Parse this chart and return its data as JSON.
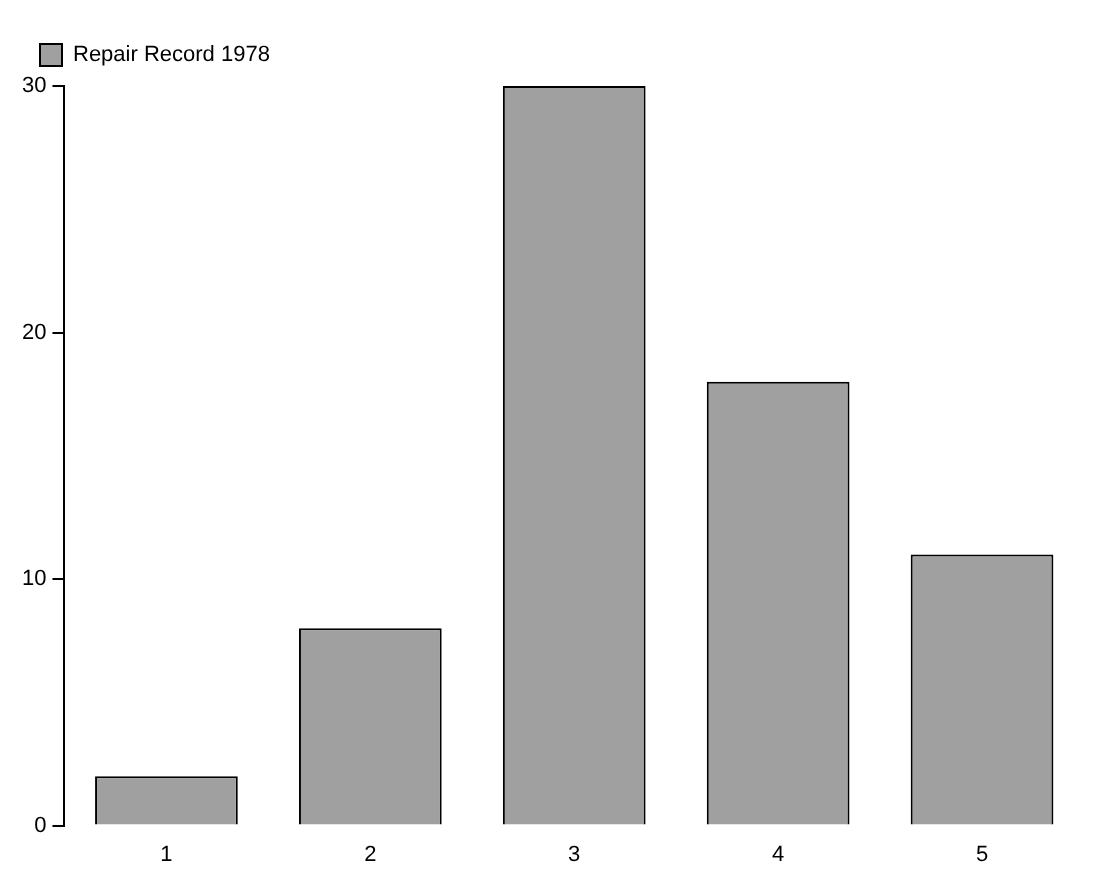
{
  "chart_data": {
    "type": "bar",
    "categories": [
      "1",
      "2",
      "3",
      "4",
      "5"
    ],
    "series": [
      {
        "name": "Repair Record 1978",
        "color": "#a0a0a0",
        "values": [
          2,
          8,
          30,
          18,
          11
        ]
      }
    ],
    "ylim": [
      0,
      30
    ],
    "yticks": [
      0,
      10,
      20,
      30
    ],
    "grid": false,
    "legend": "top left"
  }
}
